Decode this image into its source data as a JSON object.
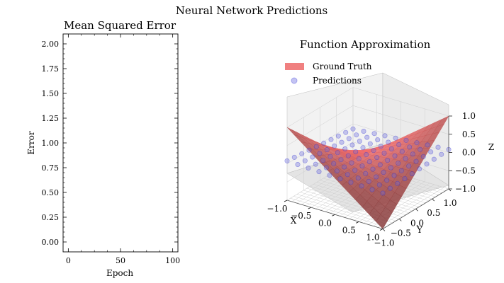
{
  "figure": {
    "suptitle": "Neural Network Predictions"
  },
  "chart_data": [
    {
      "type": "line",
      "title": "Mean Squared Error",
      "xlabel": "Epoch",
      "ylabel": "Error",
      "xlim": [
        -5,
        105
      ],
      "ylim": [
        -0.1,
        2.1
      ],
      "x_ticks": [
        0,
        50,
        100
      ],
      "y_ticks": [
        0.0,
        0.25,
        0.5,
        0.75,
        1.0,
        1.25,
        1.5,
        1.75,
        2.0
      ],
      "x_tick_labels": [
        "0",
        "50",
        "100"
      ],
      "y_tick_labels": [
        "0.00",
        "0.25",
        "0.50",
        "0.75",
        "1.00",
        "1.25",
        "1.50",
        "1.75",
        "2.00"
      ],
      "series": []
    },
    {
      "type": "surface3d",
      "title": "Function Approximation",
      "xlabel": "X",
      "ylabel": "Y",
      "zlabel": "Z",
      "xlim": [
        -1,
        1
      ],
      "ylim": [
        -1,
        1
      ],
      "zlim": [
        -1,
        1
      ],
      "x_tick_labels": [
        "−1.0",
        "−0.5",
        "0.0",
        "0.5",
        "1.0"
      ],
      "y_tick_labels": [
        "−1.0",
        "−0.5",
        "0.0",
        "0.5",
        "1.0"
      ],
      "z_tick_labels": [
        "−1.0",
        "−0.5",
        "0.0",
        "0.5",
        "1.0"
      ],
      "legend": {
        "placement": "upper-left",
        "entries": [
          "Ground Truth",
          "Predictions"
        ]
      },
      "surface": {
        "name": "Ground Truth",
        "function": "z = x·y (saddle)",
        "color": "#f08080"
      },
      "predictions": {
        "name": "Predictions",
        "color": "#6a6ae0",
        "note_z": "approximately 0 across the grid"
      },
      "grid": true
    }
  ]
}
